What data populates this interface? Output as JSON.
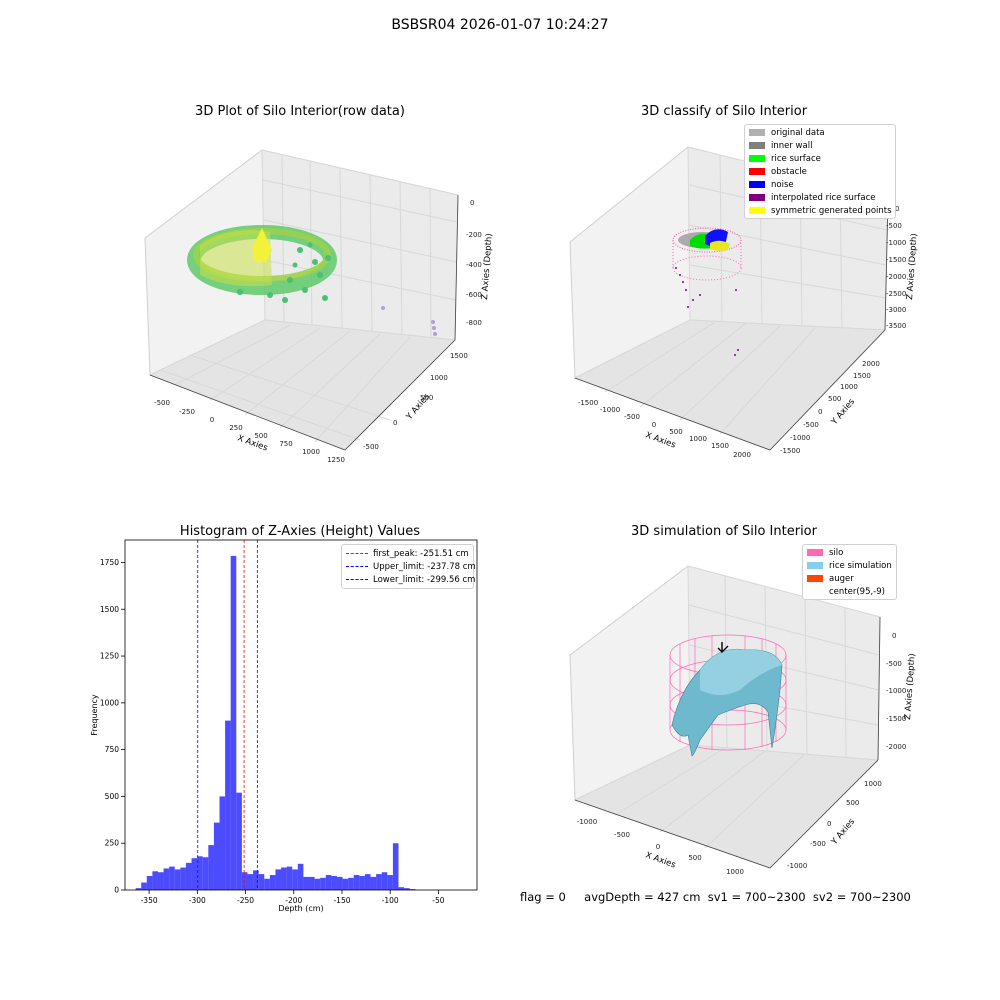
{
  "suptitle": "BSBSR04 2026-01-07 10:24:27",
  "panels": {
    "raw": {
      "title": "3D Plot of Silo Interior(row data)",
      "xlabel": "X Axies",
      "ylabel": "Y Axies",
      "zlabel": "Z Axies (Depth)",
      "xticks": [
        "-500",
        "-250",
        "0",
        "250",
        "500",
        "750",
        "1000",
        "1250"
      ],
      "yticks": [
        "-500",
        "0",
        "500",
        "1000",
        "1500"
      ],
      "zticks": [
        "0",
        "-200",
        "-400",
        "-600",
        "-800"
      ]
    },
    "classify": {
      "title": "3D classify of Silo Interior",
      "xlabel": "X Axies",
      "ylabel": "Y Axies",
      "zlabel": "Z Axies (Depth)",
      "xticks": [
        "-1500",
        "-1000",
        "-500",
        "0",
        "500",
        "1000",
        "1500",
        "2000"
      ],
      "yticks": [
        "-1500",
        "-1000",
        "-500",
        "0",
        "500",
        "1000",
        "1500",
        "2000"
      ],
      "zticks": [
        "0",
        "-500",
        "-1000",
        "-1500",
        "-2000",
        "-2500",
        "-3000",
        "-3500"
      ],
      "legend": [
        {
          "label": "original data",
          "color": "#b0b0b0"
        },
        {
          "label": "inner wall",
          "color": "#808080"
        },
        {
          "label": "rice surface",
          "color": "#00ff00"
        },
        {
          "label": "obstacle",
          "color": "#ff0000"
        },
        {
          "label": "noise",
          "color": "#0000ff"
        },
        {
          "label": "interpolated rice surface",
          "color": "#800080"
        },
        {
          "label": "symmetric generated points",
          "color": "#ffff00"
        }
      ]
    },
    "simulation": {
      "title": "3D simulation of Silo Interior",
      "xlabel": "X Axies",
      "ylabel": "Y Axies",
      "zlabel": "Z Axies (Depth)",
      "xticks": [
        "-1000",
        "-500",
        "0",
        "500",
        "1000"
      ],
      "yticks": [
        "-1000",
        "-500",
        "0",
        "500",
        "1000"
      ],
      "zticks": [
        "0",
        "-500",
        "-1000",
        "-1500",
        "-2000"
      ],
      "legend": [
        {
          "label": "silo",
          "color": "#ff69b4"
        },
        {
          "label": "rice simulation",
          "color": "#87ceeb"
        },
        {
          "label": "auger",
          "color": "#ff4500"
        },
        {
          "label": "center(95,-9)",
          "color": "#ffffff"
        }
      ]
    }
  },
  "footer": {
    "flag": "flag = 0",
    "stats": "avgDepth = 427 cm  sv1 = 700~2300  sv2 = 700~2300"
  },
  "chart_data": {
    "type": "bar",
    "title": "Histogram of Z-Axies (Height) Values",
    "xlabel": "Depth (cm)",
    "ylabel": "Frequency",
    "xlim": [
      -375,
      -10
    ],
    "ylim": [
      0,
      1870
    ],
    "xticks": [
      -350,
      -300,
      -250,
      -200,
      -150,
      -100,
      -50
    ],
    "yticks": [
      0,
      250,
      500,
      750,
      1000,
      1250,
      1500,
      1750
    ],
    "bin_width": 5.8,
    "bin_edges_start": -364,
    "values": [
      10,
      40,
      75,
      100,
      95,
      115,
      125,
      110,
      120,
      145,
      170,
      180,
      175,
      240,
      360,
      500,
      905,
      1785,
      520,
      95,
      85,
      105,
      85,
      60,
      80,
      110,
      120,
      125,
      110,
      140,
      70,
      70,
      60,
      65,
      80,
      75,
      70,
      60,
      65,
      80,
      75,
      85,
      70,
      85,
      95,
      80,
      250,
      15,
      10,
      5
    ],
    "color": "#0000ff",
    "vlines": [
      {
        "label": "first_peak: -251.51 cm",
        "x": -251.51,
        "color": "#ff0000"
      },
      {
        "label": "Upper_limit: -237.78 cm",
        "x": -237.78,
        "color": "#0000ff"
      },
      {
        "label": "Lower_limit: -299.56 cm",
        "x": -299.56,
        "color": "#0000ff"
      }
    ]
  }
}
